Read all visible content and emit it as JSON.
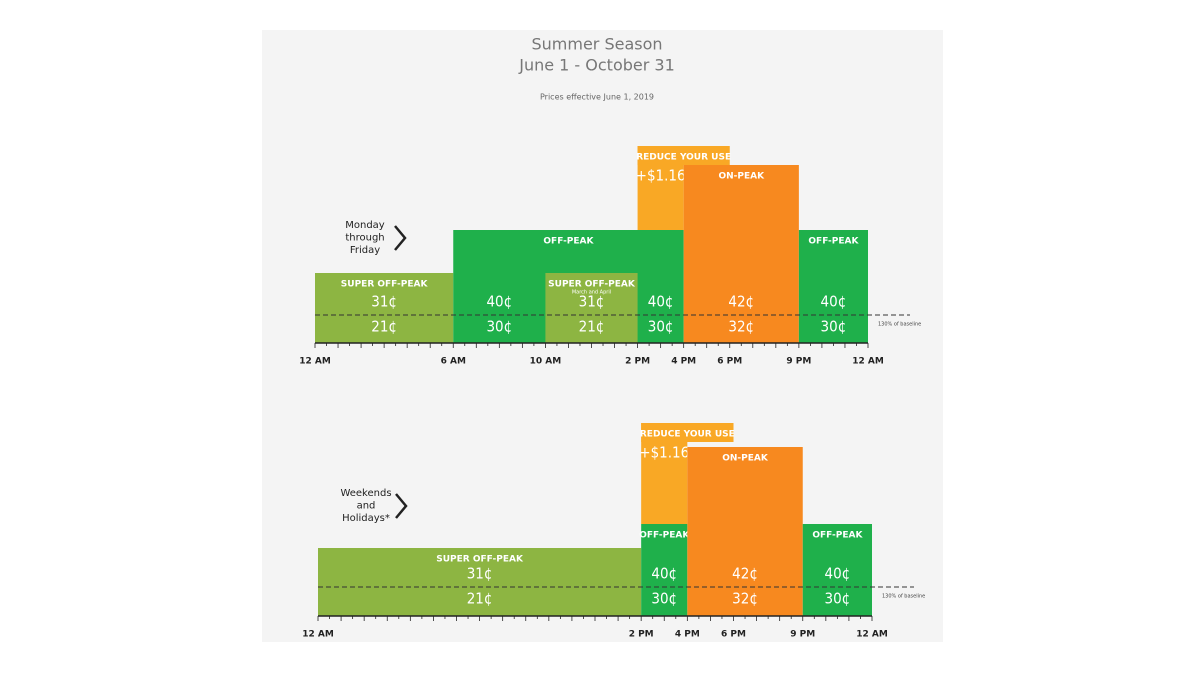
{
  "title": "Summer Season",
  "subtitle": "June 1 - October 31",
  "note": "Prices effective June 1, 2019",
  "panels": [
    {
      "label": [
        "Monday",
        "through",
        "Friday"
      ],
      "time_labels": [
        "12 AM",
        "6 AM",
        "10 AM",
        "2 PM",
        "4 PM",
        "6 PM",
        "9 PM",
        "12 AM"
      ],
      "baseline_label": "130% of baseline",
      "blocks": [
        {
          "label": "SUPER OFF-PEAK",
          "prices": [
            "31¢",
            "21¢"
          ]
        },
        {
          "label": "OFF-PEAK",
          "prices": [
            "40¢",
            "30¢"
          ]
        },
        {
          "label": "SUPER OFF-PEAK",
          "note": "March and April",
          "prices": [
            "31¢",
            "21¢"
          ]
        },
        {
          "prices": [
            "40¢",
            "30¢"
          ]
        },
        {
          "label": "REDUCE YOUR USE",
          "amount": "+$1.16"
        },
        {
          "label": "ON-PEAK",
          "prices": [
            "42¢",
            "32¢"
          ]
        },
        {
          "label": "OFF-PEAK",
          "prices": [
            "40¢",
            "30¢"
          ]
        }
      ]
    },
    {
      "label": [
        "Weekends",
        "and",
        "Holidays*"
      ],
      "time_labels": [
        "12 AM",
        "2 PM",
        "4 PM",
        "6 PM",
        "9 PM",
        "12 AM"
      ],
      "baseline_label": "130% of baseline",
      "blocks": [
        {
          "label": "SUPER OFF-PEAK",
          "prices": [
            "31¢",
            "21¢"
          ]
        },
        {
          "label": "REDUCE YOUR USE",
          "amount": "+$1.16"
        },
        {
          "label": "OFF-PEAK",
          "prices": [
            "40¢",
            "30¢"
          ]
        },
        {
          "label": "ON-PEAK",
          "prices": [
            "42¢",
            "32¢"
          ]
        },
        {
          "label": "OFF-PEAK",
          "prices": [
            "40¢",
            "30¢"
          ]
        }
      ]
    }
  ]
}
